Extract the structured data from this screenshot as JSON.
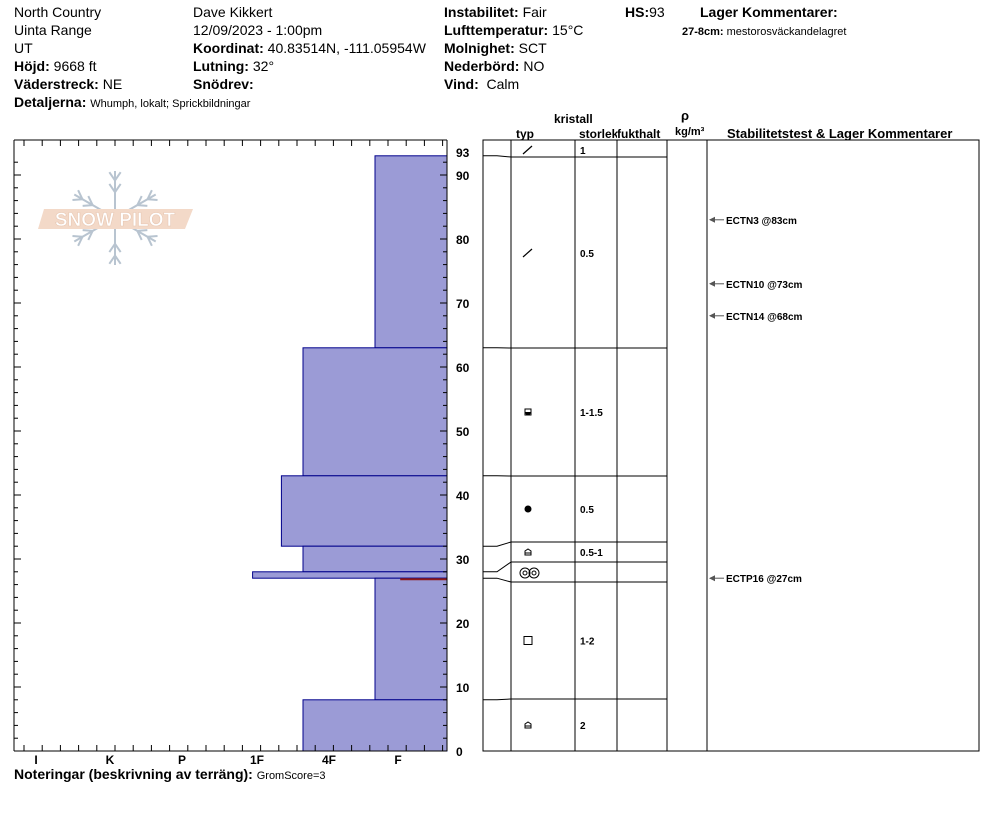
{
  "header": {
    "location": "North Country",
    "range": "Uinta Range",
    "state": "UT",
    "elevation_label": "Höjd:",
    "elevation_value": "9668 ft",
    "aspect_label": "Väderstreck:",
    "aspect_value": "NE",
    "details_label": "Detaljerna:",
    "details_value": "Whumph, lokalt; Sprickbildningar",
    "observer": "Dave Kikkert",
    "datetime": "12/09/2023 - 1:00pm",
    "coord_label": "Koordinat:",
    "coord_value": "40.83514N, -111.05954W",
    "slope_label": "Lutning:",
    "slope_value": "32°",
    "drift_label": "Snödrev:",
    "drift_value": "",
    "instability_label": "Instabilitet:",
    "instability_value": "Fair",
    "airtemp_label": "Lufttemperatur:",
    "airtemp_value": "15°C",
    "sky_label": "Molnighet:",
    "sky_value": "SCT",
    "precip_label": "Nederbörd:",
    "precip_value": "NO",
    "wind_label": "Vind:",
    "wind_value": "Calm",
    "hs_label": "HS:",
    "hs_value": "93",
    "layer_comments_label": "Lager Kommentarer:",
    "layer_comment_depth": "27-8cm:",
    "layer_comment_text": "mestorosväckandelagret"
  },
  "logo": {
    "text": "SNOW PILOT"
  },
  "columns": {
    "crystal": "kristall",
    "type": "typ",
    "size": "storlek",
    "moisture": "fukthalt",
    "rho": "ρ",
    "density_unit": "kg/m³",
    "stability": "Stabilitetstest & Lager Kommentarer"
  },
  "footer": {
    "notes_label": "Noteringar (beskrivning av terräng):",
    "notes_value": "GromScore=3"
  },
  "colors": {
    "layer_fill": "#9b9bd6",
    "layer_stroke": "#00008b",
    "weak_layer": "#8b1a1a",
    "logo_fill": "#f3d9c8",
    "logo_flake": "#b8c4d0"
  },
  "chart_data": {
    "type": "bar",
    "orientation": "horizontal",
    "title": "",
    "xlabel": "",
    "ylabel": "",
    "hardness_ticks": [
      "I",
      "K",
      "P",
      "1F",
      "4F",
      "F"
    ],
    "hardness_scale": [
      "F",
      "4F",
      "1F",
      "P",
      "K",
      "I"
    ],
    "y_ticks": [
      0,
      10,
      20,
      30,
      40,
      50,
      60,
      70,
      80,
      90,
      93
    ],
    "ylim": [
      0,
      93
    ],
    "total_height": 93,
    "layers": [
      {
        "top": 93,
        "bottom": 63,
        "hardness": 1.0,
        "crystal": "precip-particles",
        "size": "1"
      },
      {
        "top": 63,
        "bottom": 43,
        "hardness": 2.0,
        "crystal": "rounded-facets",
        "size": "1-1.5"
      },
      {
        "top": 43,
        "bottom": 32,
        "hardness": 2.3,
        "crystal": "rounded",
        "size": "0.5"
      },
      {
        "top": 32,
        "bottom": 28,
        "hardness": 2.0,
        "crystal": "depth-hoar",
        "size": "0.5-1"
      },
      {
        "top": 28,
        "bottom": 27,
        "hardness": 2.7,
        "crystal": "surface-hoar",
        "size": ""
      },
      {
        "top": 27,
        "bottom": 8,
        "hardness": 1.0,
        "crystal": "faceted",
        "size": "1-2"
      },
      {
        "top": 8,
        "bottom": 0,
        "hardness": 2.0,
        "crystal": "depth-hoar",
        "size": "2"
      }
    ],
    "crystal_rows": [
      {
        "top": 93,
        "bottom": 90.5,
        "crystal": "precip-particles",
        "size": "1"
      },
      {
        "top": 90.5,
        "bottom": 63,
        "crystal": "precip-particles",
        "size": "0.5"
      },
      {
        "top": 63,
        "bottom": 43,
        "crystal": "rounded-facets",
        "size": "1-1.5"
      },
      {
        "top": 43,
        "bottom": 32,
        "crystal": "rounded",
        "size": "0.5"
      },
      {
        "top": 32,
        "bottom": 29,
        "crystal": "depth-hoar",
        "size": "0.5-1"
      },
      {
        "top": 29,
        "bottom": 26,
        "crystal": "surface-hoar",
        "size": ""
      },
      {
        "top": 26,
        "bottom": 8,
        "crystal": "faceted",
        "size": "1-2"
      },
      {
        "top": 8,
        "bottom": 0,
        "crystal": "depth-hoar",
        "size": "2"
      }
    ],
    "weak_layer_depth": 27,
    "stability_tests": [
      {
        "depth": 83,
        "label": "ECTN3 @83cm"
      },
      {
        "depth": 73,
        "label": "ECTN10 @73cm"
      },
      {
        "depth": 68,
        "label": "ECTN14 @68cm"
      },
      {
        "depth": 27,
        "label": "ECTP16 @27cm"
      }
    ]
  }
}
